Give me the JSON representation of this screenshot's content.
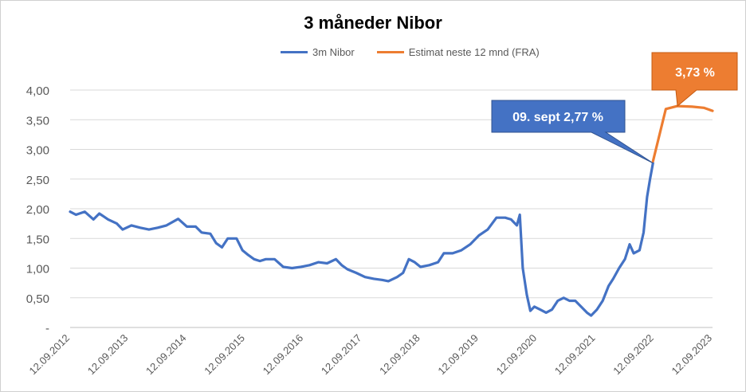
{
  "chart_data": {
    "type": "line",
    "title": "3 måneder Nibor",
    "xlabel": "",
    "ylabel": "",
    "ylim": [
      0,
      4.0
    ],
    "y_ticks": [
      "-",
      "0,50",
      "1,00",
      "1,50",
      "2,00",
      "2,50",
      "3,00",
      "3,50",
      "4,00"
    ],
    "x_ticks": [
      "12.09.2012",
      "12.09.2013",
      "12.09.2014",
      "12.09.2015",
      "12.09.2016",
      "12.09.2017",
      "12.09.2018",
      "12.09.2019",
      "12.09.2020",
      "12.09.2021",
      "12.09.2022",
      "12.09.2023"
    ],
    "grid": "horizontal",
    "legend_position": "top",
    "series": [
      {
        "name": "3m Nibor",
        "color": "#4472c4",
        "points": [
          [
            2012.7,
            1.95
          ],
          [
            2012.8,
            1.9
          ],
          [
            2012.95,
            1.95
          ],
          [
            2013.1,
            1.82
          ],
          [
            2013.2,
            1.92
          ],
          [
            2013.35,
            1.82
          ],
          [
            2013.5,
            1.75
          ],
          [
            2013.6,
            1.65
          ],
          [
            2013.75,
            1.72
          ],
          [
            2013.9,
            1.68
          ],
          [
            2014.05,
            1.65
          ],
          [
            2014.2,
            1.68
          ],
          [
            2014.35,
            1.72
          ],
          [
            2014.55,
            1.83
          ],
          [
            2014.7,
            1.7
          ],
          [
            2014.85,
            1.7
          ],
          [
            2014.95,
            1.6
          ],
          [
            2015.1,
            1.58
          ],
          [
            2015.2,
            1.42
          ],
          [
            2015.3,
            1.35
          ],
          [
            2015.4,
            1.5
          ],
          [
            2015.55,
            1.5
          ],
          [
            2015.65,
            1.3
          ],
          [
            2015.75,
            1.22
          ],
          [
            2015.85,
            1.15
          ],
          [
            2015.95,
            1.12
          ],
          [
            2016.05,
            1.15
          ],
          [
            2016.2,
            1.15
          ],
          [
            2016.35,
            1.02
          ],
          [
            2016.5,
            1.0
          ],
          [
            2016.65,
            1.02
          ],
          [
            2016.8,
            1.05
          ],
          [
            2016.95,
            1.1
          ],
          [
            2017.1,
            1.08
          ],
          [
            2017.25,
            1.15
          ],
          [
            2017.35,
            1.05
          ],
          [
            2017.45,
            0.98
          ],
          [
            2017.6,
            0.92
          ],
          [
            2017.75,
            0.85
          ],
          [
            2017.9,
            0.82
          ],
          [
            2018.05,
            0.8
          ],
          [
            2018.15,
            0.78
          ],
          [
            2018.3,
            0.85
          ],
          [
            2018.4,
            0.92
          ],
          [
            2018.5,
            1.15
          ],
          [
            2018.6,
            1.1
          ],
          [
            2018.7,
            1.02
          ],
          [
            2018.85,
            1.05
          ],
          [
            2019.0,
            1.1
          ],
          [
            2019.1,
            1.25
          ],
          [
            2019.25,
            1.25
          ],
          [
            2019.4,
            1.3
          ],
          [
            2019.55,
            1.4
          ],
          [
            2019.7,
            1.55
          ],
          [
            2019.85,
            1.65
          ],
          [
            2020.0,
            1.85
          ],
          [
            2020.15,
            1.85
          ],
          [
            2020.25,
            1.82
          ],
          [
            2020.35,
            1.72
          ],
          [
            2020.4,
            1.9
          ],
          [
            2020.45,
            1.0
          ],
          [
            2020.52,
            0.55
          ],
          [
            2020.58,
            0.28
          ],
          [
            2020.65,
            0.35
          ],
          [
            2020.75,
            0.3
          ],
          [
            2020.85,
            0.25
          ],
          [
            2020.95,
            0.3
          ],
          [
            2021.05,
            0.45
          ],
          [
            2021.15,
            0.5
          ],
          [
            2021.25,
            0.45
          ],
          [
            2021.35,
            0.45
          ],
          [
            2021.45,
            0.35
          ],
          [
            2021.55,
            0.25
          ],
          [
            2021.62,
            0.2
          ],
          [
            2021.72,
            0.3
          ],
          [
            2021.82,
            0.45
          ],
          [
            2021.92,
            0.7
          ],
          [
            2022.0,
            0.82
          ],
          [
            2022.1,
            1.0
          ],
          [
            2022.2,
            1.15
          ],
          [
            2022.28,
            1.4
          ],
          [
            2022.35,
            1.25
          ],
          [
            2022.45,
            1.3
          ],
          [
            2022.52,
            1.6
          ],
          [
            2022.58,
            2.2
          ],
          [
            2022.63,
            2.5
          ],
          [
            2022.68,
            2.77
          ]
        ]
      },
      {
        "name": "Estimat neste 12 mnd (FRA)",
        "color": "#ed7d31",
        "points": [
          [
            2022.68,
            2.8
          ],
          [
            2022.9,
            3.68
          ],
          [
            2023.1,
            3.73
          ],
          [
            2023.35,
            3.72
          ],
          [
            2023.55,
            3.7
          ],
          [
            2023.7,
            3.65
          ]
        ]
      }
    ],
    "annotations": [
      {
        "label": "09. sept 2,77 %",
        "color": "#4472c4",
        "target": [
          2022.68,
          2.77
        ]
      },
      {
        "label": "3,73  %",
        "color": "#ed7d31",
        "target": [
          2023.1,
          3.73
        ]
      }
    ]
  }
}
